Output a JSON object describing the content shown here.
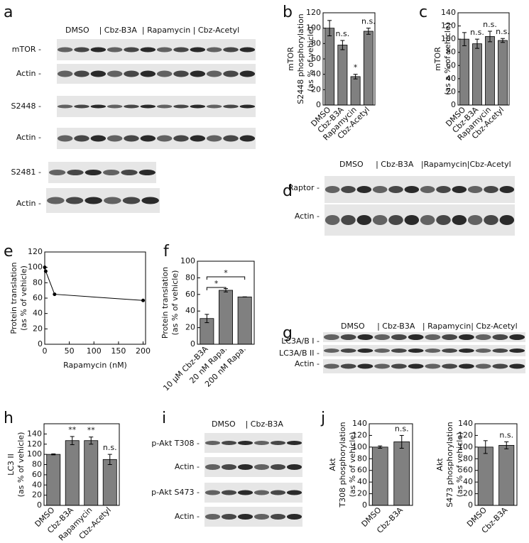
{
  "chart_data": [
    {
      "panel": "b",
      "type": "bar",
      "ylabel": [
        "mTOR",
        "S2448 phosphorylation",
        "(as % of vehicle)"
      ],
      "categories": [
        "DMSO",
        "Cbz-B3A",
        "Rapamycin",
        "Cbz-Acetyl"
      ],
      "values": [
        100,
        78,
        37,
        96
      ],
      "errors": [
        10,
        6,
        3,
        4
      ],
      "color": "#808080",
      "ylim": [
        0,
        120
      ],
      "yticks": [
        0,
        20,
        40,
        60,
        80,
        100,
        120
      ],
      "annotations": [
        {
          "text": "n.s.",
          "category": "Cbz-B3A"
        },
        {
          "text": "*",
          "category": "Rapamycin"
        },
        {
          "text": "n.s.",
          "category": "Cbz-Acetyl"
        }
      ]
    },
    {
      "panel": "c",
      "type": "bar",
      "ylabel": [
        "mTOR",
        "(as a % of vehicle)"
      ],
      "categories": [
        "DMSO",
        "Cbz-B3A",
        "Rapamycin",
        "Cbz-Acetyl"
      ],
      "values": [
        100,
        93,
        104,
        98
      ],
      "errors": [
        10,
        7,
        8,
        3
      ],
      "color": "#808080",
      "ylim": [
        0,
        140
      ],
      "yticks": [
        0,
        20,
        40,
        60,
        80,
        100,
        120,
        140
      ],
      "annotations": [
        {
          "text": "n.s.",
          "category": "Cbz-B3A"
        },
        {
          "text": "n.s.",
          "category": "Rapamycin"
        },
        {
          "text": "n.s.",
          "category": "Cbz-Acetyl"
        }
      ]
    },
    {
      "panel": "e",
      "type": "line",
      "ylabel": [
        "Protein translation",
        "(as % of vehicle)"
      ],
      "xlabel": "Rapamycin (nM)",
      "x": [
        0,
        2,
        20,
        200
      ],
      "values": [
        100,
        95,
        65,
        57
      ],
      "color": "#000000",
      "xlim": [
        0,
        205
      ],
      "xticks": [
        0,
        50,
        100,
        150,
        200
      ],
      "ylim": [
        0,
        120
      ],
      "yticks": [
        0,
        20,
        40,
        60,
        80,
        100,
        120
      ]
    },
    {
      "panel": "f",
      "type": "bar",
      "ylabel": [
        "Protein translation",
        "(as % of vehicle)"
      ],
      "categories": [
        "10 µM Cbz-B3A",
        "20 nM Rapa.",
        "200 nM Rapa."
      ],
      "values": [
        31,
        65,
        57
      ],
      "errors": [
        5,
        2,
        0
      ],
      "color": "#808080",
      "ylim": [
        0,
        100
      ],
      "yticks": [
        0,
        20,
        40,
        60,
        80,
        100
      ],
      "brackets": [
        {
          "text": "*",
          "from": "10 µM Cbz-B3A",
          "to": "200 nM Rapa."
        },
        {
          "text": "*",
          "from": "10 µM Cbz-B3A",
          "to": "20 nM Rapa."
        }
      ]
    },
    {
      "panel": "h",
      "type": "bar",
      "ylabel": [
        "LC3 II",
        "(as % of vehicle)"
      ],
      "categories": [
        "DMSO",
        "Cbz-B3A",
        "Rapamycin",
        "Cbz-Acetyl"
      ],
      "values": [
        100,
        127,
        127,
        90
      ],
      "errors": [
        1,
        8,
        7,
        10
      ],
      "color": "#808080",
      "ylim": [
        0,
        160
      ],
      "yticks": [
        0,
        20,
        40,
        60,
        80,
        100,
        120,
        140
      ],
      "annotations": [
        {
          "text": "**",
          "category": "Cbz-B3A"
        },
        {
          "text": "**",
          "category": "Rapamycin"
        },
        {
          "text": "n.s.",
          "category": "Cbz-Acetyl"
        }
      ]
    },
    {
      "panel": "j",
      "type": "bar",
      "ylabel": [
        "Akt",
        "T308 phosphorylation",
        "(as % of vehicle)"
      ],
      "categories": [
        "DMSO",
        "Cbz-B3A"
      ],
      "values": [
        100,
        109
      ],
      "errors": [
        2,
        11
      ],
      "color": "#808080",
      "ylim": [
        0,
        140
      ],
      "yticks": [
        0,
        20,
        40,
        60,
        80,
        100,
        120,
        140
      ],
      "annotations": [
        {
          "text": "n.s.",
          "category": "Cbz-B3A"
        }
      ]
    },
    {
      "type": "bar",
      "ylabel": [
        "Akt",
        "S473 phosphorylation",
        "(as % of vehicle)"
      ],
      "categories": [
        "DMSO",
        "Cbz-B3A"
      ],
      "values": [
        100,
        103
      ],
      "errors": [
        11,
        6
      ],
      "color": "#808080",
      "ylim": [
        0,
        140
      ],
      "yticks": [
        0,
        20,
        40,
        60,
        80,
        100,
        120,
        140
      ],
      "annotations": [
        {
          "text": "n.s.",
          "category": "Cbz-B3A"
        }
      ]
    }
  ],
  "blots": [
    {
      "panel": "a",
      "header": "DMSO    | Cbz-B3A  | Rapamycin | Cbz-Acetyl",
      "rows": [
        "mTOR -",
        "Actin -",
        "S2448 -",
        "Actin -",
        "S2481 -",
        "Actin -"
      ]
    },
    {
      "panel": "d",
      "header": "DMSO     | Cbz-B3A   |Rapamycin|Cbz-Acetyl",
      "rows": [
        "Raptor -",
        "Actin -"
      ]
    },
    {
      "panel": "g",
      "header": "DMSO     | Cbz-B3A   | Rapamycin| Cbz-Acetyl",
      "rows": [
        "LC3A/B I -",
        "LC3A/B II -",
        "Actin -"
      ]
    },
    {
      "panel": "i",
      "header": "DMSO    | Cbz-B3A",
      "rows": [
        "p-Akt T308 -",
        "Actin -",
        "p-Akt S473 -",
        "Actin -"
      ]
    }
  ]
}
